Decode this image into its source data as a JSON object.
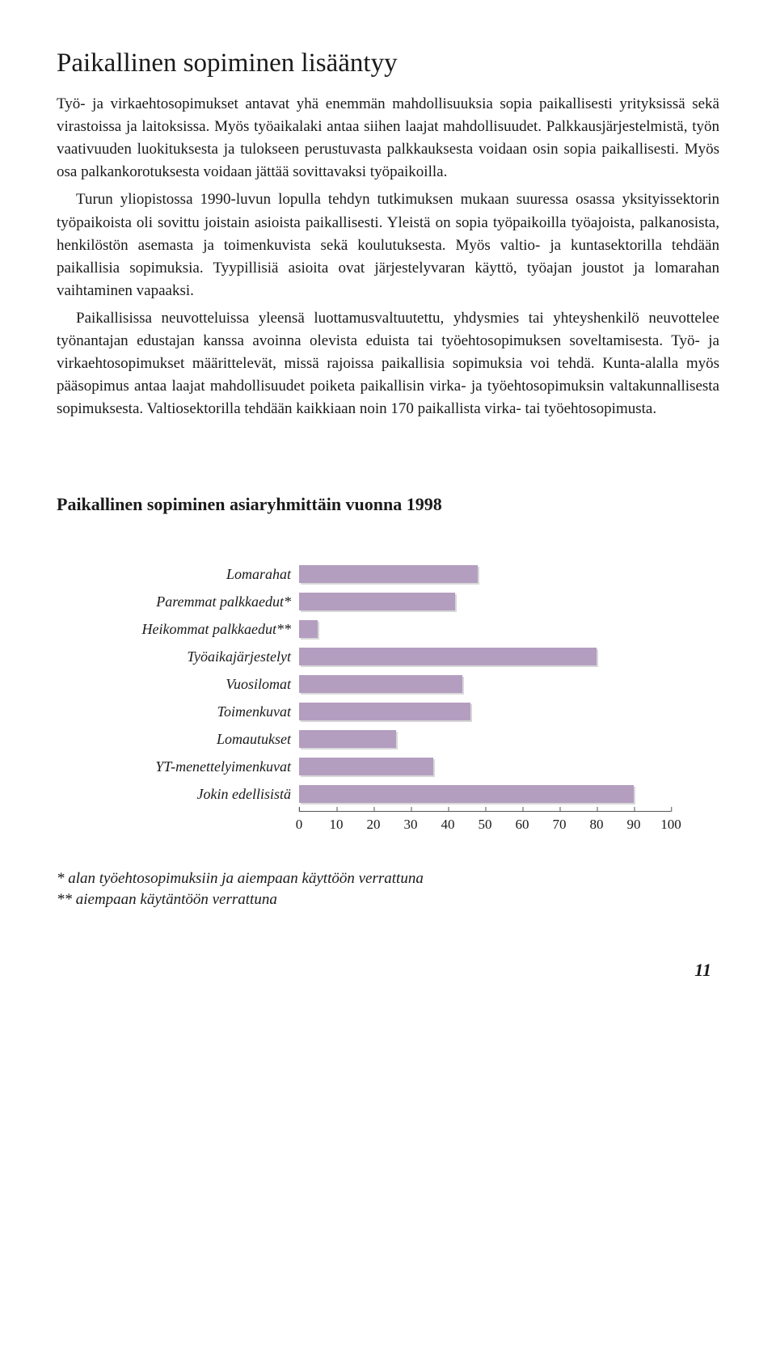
{
  "heading": "Paikallinen sopiminen lisääntyy",
  "para1": "Työ- ja virkaehtosopimukset antavat yhä enemmän mahdollisuuksia sopia paikallisesti yrityksissä sekä virastoissa ja laitoksissa. Myös työaikalaki antaa siihen laajat mahdollisuudet. Palkkausjärjestelmistä, työn vaativuuden luokituksesta ja tulokseen perustuvasta palkkauksesta voidaan osin sopia paikallisesti. Myös osa palkankorotuksesta voidaan jättää sovittavaksi työpaikoilla.",
  "para2": "Turun yliopistossa 1990-luvun lopulla tehdyn tutkimuksen mukaan suuressa osassa yksityissektorin työpaikoista oli sovittu joistain asioista paikallisesti. Yleistä on sopia työpaikoilla työajoista, palkanosista, henkilöstön asemasta ja toimenkuvista sekä koulutuksesta. Myös valtio- ja kuntasektorilla tehdään paikallisia sopimuksia. Tyypillisiä asioita ovat järjestelyvaran käyttö, työajan joustot ja lomarahan vaihtaminen vapaaksi.",
  "para3": "Paikallisissa neuvotteluissa yleensä luottamusvaltuutettu, yhdysmies tai yhteyshenkilö neuvottelee työnantajan edustajan kanssa avoinna olevista eduista tai työehtosopimuksen soveltamisesta. Työ- ja virkaehtosopimukset määrittelevät, missä rajoissa paikallisia sopimuksia voi tehdä. Kunta-alalla myös pääsopimus antaa laajat mahdollisuudet poiketa paikallisin virka- ja työehtosopimuksin valtakunnallisesta sopimuksesta. Valtiosektorilla tehdään kaikkiaan noin 170 paikallista virka- tai työehtosopimusta.",
  "chart": {
    "title": "Paikallinen sopiminen asiaryhmittäin vuonna 1998",
    "type": "bar",
    "xmax": 100,
    "bar_color": "#b39ec0",
    "categories": [
      {
        "label": "Lomarahat",
        "value": 48
      },
      {
        "label": "Paremmat palkkaedut*",
        "value": 42
      },
      {
        "label": "Heikommat palkkaedut**",
        "value": 5
      },
      {
        "label": "Työaikajärjestelyt",
        "value": 80
      },
      {
        "label": "Vuosilomat",
        "value": 44
      },
      {
        "label": "Toimenkuvat",
        "value": 46
      },
      {
        "label": "Lomautukset",
        "value": 26
      },
      {
        "label": "YT-menettelyimenkuvat",
        "value": 36
      },
      {
        "label": "Jokin edellisistä",
        "value": 90
      }
    ],
    "ticks": [
      0,
      10,
      20,
      30,
      40,
      50,
      60,
      70,
      80,
      90,
      100
    ]
  },
  "footnote1": "* alan työehtosopimuksiin ja aiempaan käyttöön verrattuna",
  "footnote2": "** aiempaan käytäntöön verrattuna",
  "page_number": "11"
}
